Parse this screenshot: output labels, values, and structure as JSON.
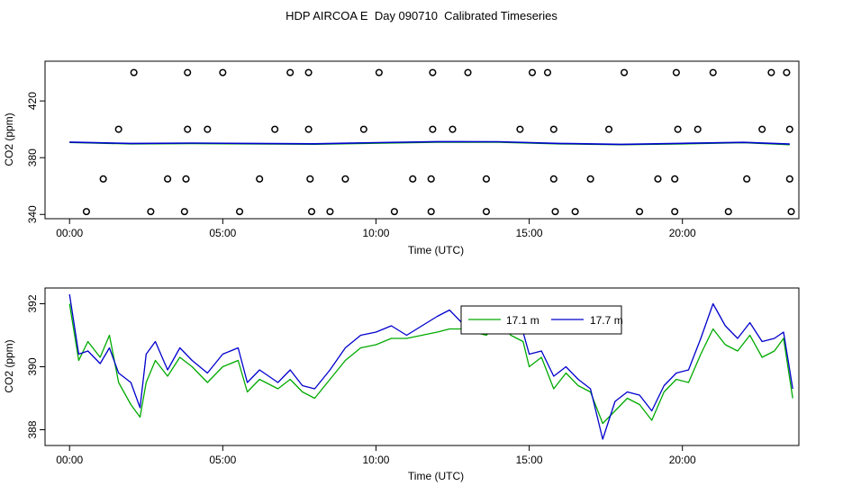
{
  "title": "HDP AIRCOA E  Day 090710  Calibrated Timeseries",
  "colors": {
    "series_green": "#00aa00",
    "series_blue": "#0000cc",
    "axis": "#000000",
    "markers": "#000000"
  },
  "chart_data": [
    {
      "type": "line",
      "panel": "top",
      "xlabel": "Time (UTC)",
      "ylabel": "CO2 (ppm)",
      "xlim": [
        -0.8,
        23.8
      ],
      "ylim": [
        337,
        448
      ],
      "x_ticks": [
        0,
        5,
        10,
        15,
        20
      ],
      "x_tick_labels": [
        "00:00",
        "05:00",
        "10:00",
        "15:00",
        "20:00"
      ],
      "y_ticks": [
        340,
        380,
        420
      ],
      "y_tick_labels": [
        "340",
        "380",
        "420"
      ],
      "series": [
        {
          "name": "17.1 m",
          "color": "green",
          "x": [
            0,
            2,
            4,
            6,
            8,
            10,
            12,
            14,
            16,
            18,
            20,
            22,
            23.5
          ],
          "y": [
            390.8,
            389.8,
            390.0,
            389.8,
            389.5,
            390.2,
            391.0,
            391.0,
            389.8,
            389.2,
            389.8,
            390.6,
            389.2
          ]
        },
        {
          "name": "17.7 m",
          "color": "blue",
          "x": [
            0,
            2,
            4,
            6,
            8,
            10,
            12,
            14,
            16,
            18,
            20,
            22,
            23.5
          ],
          "y": [
            391.0,
            390.0,
            390.3,
            390.0,
            389.8,
            390.6,
            391.3,
            391.2,
            390.0,
            389.4,
            390.1,
            390.8,
            389.6
          ]
        }
      ],
      "open_circle_markers": [
        {
          "level": 440,
          "x": [
            2.1,
            3.85,
            5.0,
            7.2,
            7.8,
            10.1,
            11.85,
            13.0,
            15.1,
            15.6,
            18.1,
            19.8,
            21.0,
            22.9,
            23.4
          ]
        },
        {
          "level": 400,
          "x": [
            1.6,
            3.85,
            4.5,
            6.7,
            7.8,
            9.6,
            11.85,
            12.5,
            14.7,
            15.8,
            17.6,
            19.85,
            20.5,
            22.6,
            23.5
          ]
        },
        {
          "level": 365,
          "x": [
            1.1,
            3.2,
            3.8,
            6.2,
            7.85,
            9.0,
            11.2,
            11.8,
            13.6,
            15.8,
            17.0,
            19.2,
            19.75,
            22.1,
            23.5
          ]
        },
        {
          "level": 342,
          "x": [
            0.55,
            2.65,
            3.75,
            5.55,
            7.9,
            8.5,
            10.6,
            11.8,
            13.6,
            15.85,
            16.5,
            18.6,
            19.75,
            21.5,
            23.55
          ]
        }
      ]
    },
    {
      "type": "line",
      "panel": "bottom",
      "xlabel": "Time (UTC)",
      "ylabel": "CO2 (ppm)",
      "xlim": [
        -0.8,
        23.8
      ],
      "ylim": [
        387.5,
        392.5
      ],
      "x_ticks": [
        0,
        5,
        10,
        15,
        20
      ],
      "x_tick_labels": [
        "00:00",
        "05:00",
        "10:00",
        "15:00",
        "20:00"
      ],
      "y_ticks": [
        388,
        390,
        392
      ],
      "y_tick_labels": [
        "388",
        "390",
        "392"
      ],
      "legend": {
        "position": "top-center",
        "entries": [
          "17.1 m",
          "17.7 m"
        ]
      },
      "series": [
        {
          "name": "17.1 m",
          "color": "green",
          "x": [
            0,
            0.3,
            0.6,
            1.0,
            1.3,
            1.6,
            2.0,
            2.3,
            2.5,
            2.8,
            3.2,
            3.6,
            4.0,
            4.5,
            5.0,
            5.5,
            5.8,
            6.2,
            6.8,
            7.2,
            7.6,
            8.0,
            8.5,
            9.0,
            9.5,
            10.0,
            10.5,
            11.0,
            11.5,
            12.0,
            12.4,
            12.8,
            13.2,
            13.6,
            14.0,
            14.4,
            14.8,
            15.0,
            15.4,
            15.8,
            16.2,
            16.6,
            17.0,
            17.4,
            17.8,
            18.2,
            18.6,
            19.0,
            19.4,
            19.8,
            20.2,
            20.6,
            21.0,
            21.4,
            21.8,
            22.2,
            22.6,
            23.0,
            23.3,
            23.6
          ],
          "y": [
            392.0,
            390.2,
            390.8,
            390.3,
            391.0,
            389.5,
            388.8,
            388.4,
            389.5,
            390.2,
            389.7,
            390.3,
            390.0,
            389.5,
            390.0,
            390.2,
            389.2,
            389.6,
            389.3,
            389.6,
            389.2,
            389.0,
            389.6,
            390.2,
            390.6,
            390.7,
            390.9,
            390.9,
            391.0,
            391.1,
            391.2,
            391.2,
            391.1,
            391.0,
            391.4,
            391.0,
            390.8,
            390.0,
            390.3,
            389.3,
            389.8,
            389.4,
            389.2,
            388.2,
            388.6,
            389.0,
            388.8,
            388.3,
            389.2,
            389.6,
            389.5,
            390.4,
            391.2,
            390.7,
            390.5,
            391.0,
            390.3,
            390.5,
            390.9,
            389.0
          ]
        },
        {
          "name": "17.7 m",
          "color": "blue",
          "x": [
            0,
            0.3,
            0.6,
            1.0,
            1.3,
            1.6,
            2.0,
            2.3,
            2.5,
            2.8,
            3.2,
            3.6,
            4.0,
            4.5,
            5.0,
            5.5,
            5.8,
            6.2,
            6.8,
            7.2,
            7.6,
            8.0,
            8.5,
            9.0,
            9.5,
            10.0,
            10.5,
            11.0,
            11.5,
            12.0,
            12.4,
            12.8,
            13.2,
            13.6,
            14.0,
            14.4,
            14.8,
            15.0,
            15.4,
            15.8,
            16.2,
            16.6,
            17.0,
            17.4,
            17.8,
            18.2,
            18.6,
            19.0,
            19.4,
            19.8,
            20.2,
            20.6,
            21.0,
            21.4,
            21.8,
            22.2,
            22.6,
            23.0,
            23.3,
            23.6
          ],
          "y": [
            392.3,
            390.4,
            390.5,
            390.1,
            390.6,
            389.8,
            389.5,
            388.7,
            390.4,
            390.8,
            389.9,
            390.6,
            390.2,
            389.8,
            390.4,
            390.6,
            389.5,
            389.9,
            389.5,
            389.9,
            389.4,
            389.3,
            389.9,
            390.6,
            391.0,
            391.1,
            391.3,
            391.0,
            391.3,
            391.6,
            391.8,
            391.4,
            391.4,
            391.3,
            391.9,
            391.4,
            391.1,
            390.4,
            390.5,
            389.7,
            390.0,
            389.6,
            389.3,
            387.7,
            388.9,
            389.2,
            389.1,
            388.6,
            389.4,
            389.8,
            389.9,
            390.9,
            392.0,
            391.3,
            390.9,
            391.4,
            390.8,
            390.9,
            391.1,
            389.3
          ]
        }
      ]
    }
  ]
}
